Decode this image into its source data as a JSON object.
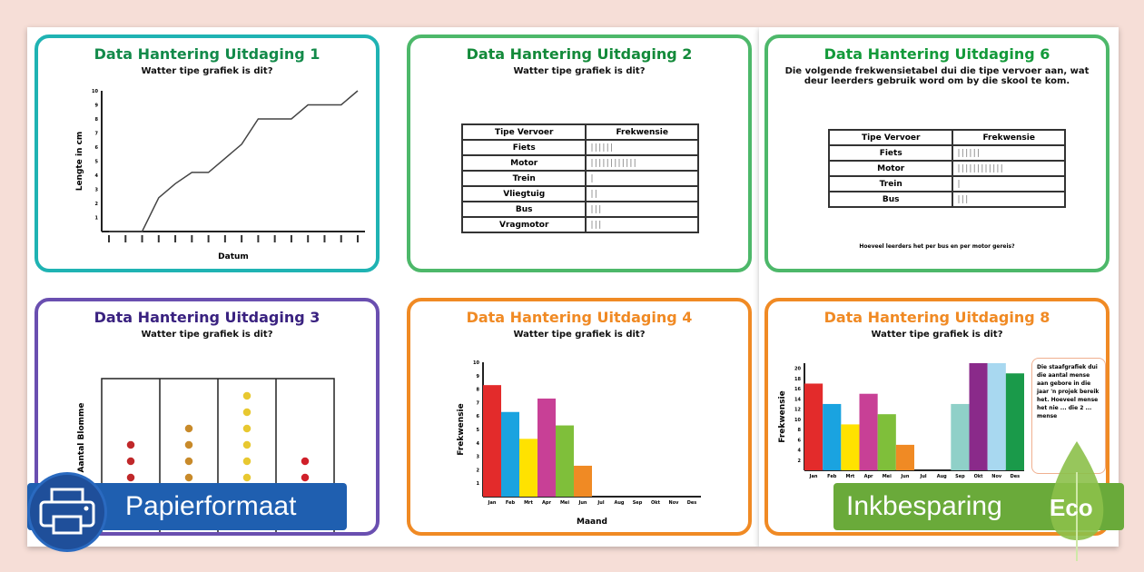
{
  "cards": [
    {
      "title": "Data Hantering Uitdaging 1",
      "question": "Watter tipe grafiek is dit?",
      "color": "#1fb3b3",
      "title_color": "#138a4a",
      "chart_data": {
        "type": "line",
        "xlabel": "Datum",
        "ylabel": "Lengte in cm",
        "ylim": [
          0,
          10
        ],
        "yticks": [
          1,
          2,
          3,
          4,
          5,
          6,
          7,
          8,
          9,
          10
        ],
        "values": [
          0,
          0,
          0,
          2.4,
          3.4,
          4.2,
          4.2,
          5.2,
          6.2,
          8,
          8,
          8,
          9,
          9,
          9,
          10
        ]
      }
    },
    {
      "title": "Data Hantering Uitdaging 2",
      "question": "Watter tipe grafiek is dit?",
      "color": "#4db86a",
      "title_color": "#138a3a",
      "table": {
        "headers": [
          "Tipe Vervoer",
          "Frekwensie"
        ],
        "rows": [
          [
            "Fiets",
            "||||||"
          ],
          [
            "Motor",
            "||||||||||||"
          ],
          [
            "Trein",
            "|"
          ],
          [
            "Vliegtuig",
            "||"
          ],
          [
            "Bus",
            "|||"
          ],
          [
            "Vragmotor",
            "|||"
          ]
        ]
      }
    },
    {
      "title": "Data Hantering Uitdaging 6",
      "intro": "Die volgende frekwensietabel dui die tipe vervoer aan, wat deur leerders gebruik word om by die skool te kom.",
      "color": "#4db86a",
      "title_color": "#139a3a",
      "table": {
        "headers": [
          "Tipe Vervoer",
          "Frekwensie"
        ],
        "rows": [
          [
            "Fiets",
            "||||||"
          ],
          [
            "Motor",
            "||||||||||||"
          ],
          [
            "Trein",
            "|"
          ],
          [
            "Bus",
            "|||"
          ]
        ]
      },
      "footer_question": "Hoeveel leerders het per bus en per motor gereis?"
    },
    {
      "title": "Data Hantering Uitdaging 3",
      "question": "Watter tipe grafiek is dit?",
      "color": "#6a4fb0",
      "title_color": "#3a2280",
      "chart_data": {
        "type": "pictogram",
        "ylabel": "Aantal Blomme",
        "values": [
          3,
          4,
          6,
          2
        ],
        "colors": [
          "#c0282a",
          "#c88a2a",
          "#e8c830",
          "#d0202a"
        ]
      }
    },
    {
      "title": "Data Hantering Uitdaging 4",
      "question": "Watter tipe grafiek is dit?",
      "color": "#f08a24",
      "title_color": "#f08a24",
      "chart_data": {
        "type": "bar",
        "xlabel": "Maand",
        "ylabel": "Frekwensie",
        "ylim": [
          0,
          10
        ],
        "yticks": [
          1,
          2,
          3,
          4,
          5,
          6,
          7,
          8,
          9,
          10
        ],
        "categories": [
          "Jan",
          "Feb",
          "Mrt",
          "Apr",
          "Mei",
          "Jun",
          "Jul",
          "Aug",
          "Sep",
          "Okt",
          "Nov",
          "Des"
        ],
        "values": [
          8.3,
          6.3,
          4.3,
          7.3,
          5.3,
          2.3,
          0,
          0,
          0,
          0,
          0,
          0
        ],
        "colors": [
          "#e32b2b",
          "#1aa3e0",
          "#ffe200",
          "#c84096",
          "#7fbf3a",
          "#f08a24"
        ]
      }
    },
    {
      "title": "Data Hantering Uitdaging 8",
      "question": "Watter tipe grafiek is dit?",
      "color": "#f08a24",
      "title_color": "#f08a24",
      "chart_data": {
        "type": "bar",
        "ylabel": "Frekwensie",
        "ylim": [
          0,
          21
        ],
        "yticks": [
          2,
          4,
          6,
          8,
          10,
          12,
          14,
          16,
          18,
          20
        ],
        "categories": [
          "Jan",
          "Feb",
          "Mrt",
          "Apr",
          "Mei",
          "Jun",
          "Jul",
          "Aug",
          "Sep",
          "Okt",
          "Nov",
          "Des"
        ],
        "values": [
          17,
          13,
          9,
          15,
          11,
          5,
          null,
          null,
          13,
          21,
          21,
          19
        ],
        "colors": [
          "#e32b2b",
          "#1aa3e0",
          "#ffe200",
          "#c84096",
          "#7fbf3a",
          "#f08a24",
          "#888",
          "#888",
          "#8fd0c8",
          "#8a2a8a",
          "#a8d8f0",
          "#1a9a4a"
        ]
      },
      "side_text": "Die staafgrafiek dui die aantal mense aan gebore in die jaar 'n projek bereik het. Hoeveel mense het nie ... die 2 ... mense"
    }
  ],
  "badges": {
    "paper": "Papierformaat",
    "eco": "Inkbesparing",
    "eco_tag": "Eco"
  },
  "colors": {
    "paper_badge": "#1f5fb0",
    "eco_badge": "#6aaa3a"
  }
}
